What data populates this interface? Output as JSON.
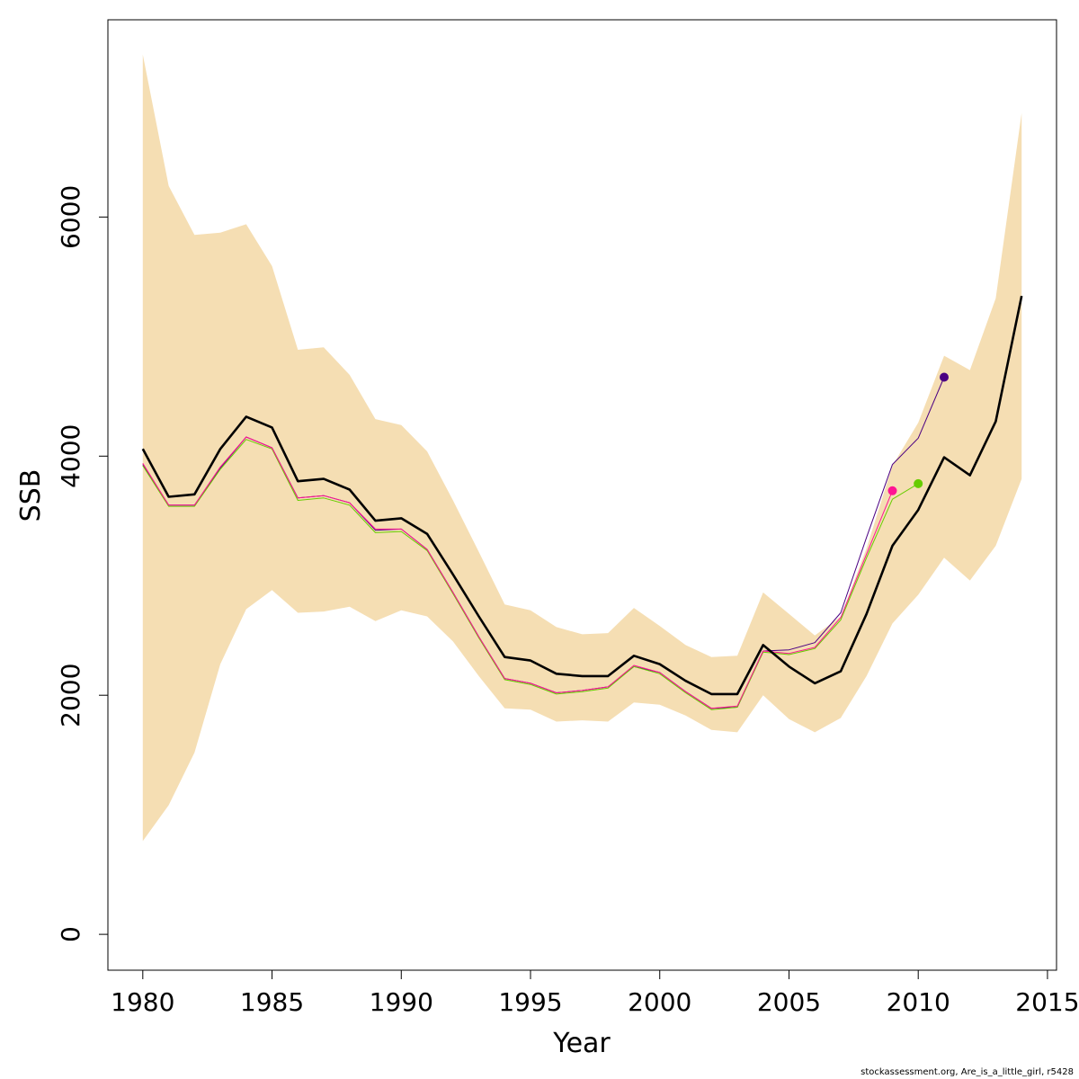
{
  "chart_data": {
    "type": "line",
    "title": "",
    "xlabel": "Year",
    "ylabel": "SSB",
    "xlim": [
      1978.65,
      2015.35
    ],
    "ylim": [
      -300,
      7650
    ],
    "x_ticks": [
      1980,
      1985,
      1990,
      1995,
      2000,
      2005,
      2010,
      2015
    ],
    "y_ticks": [
      0,
      2000,
      4000,
      6000
    ],
    "grid": false,
    "legend": "none",
    "confidence_band": {
      "color": "#f5deb3",
      "x": [
        1980,
        1981,
        1982,
        1983,
        1984,
        1985,
        1986,
        1987,
        1988,
        1989,
        1990,
        1991,
        1992,
        1993,
        1994,
        1995,
        1996,
        1997,
        1998,
        1999,
        2000,
        2001,
        2002,
        2003,
        2004,
        2005,
        2006,
        2007,
        2008,
        2009,
        2010,
        2011,
        2012,
        2013,
        2014
      ],
      "upper": [
        7360,
        6260,
        5850,
        5870,
        5940,
        5590,
        4890,
        4910,
        4680,
        4310,
        4260,
        4040,
        3630,
        3200,
        2760,
        2710,
        2570,
        2510,
        2520,
        2730,
        2580,
        2420,
        2320,
        2330,
        2860,
        2680,
        2500,
        2660,
        3230,
        3920,
        4280,
        4840,
        4720,
        5320,
        6870
      ],
      "lower": [
        780,
        1080,
        1520,
        2260,
        2720,
        2880,
        2690,
        2700,
        2740,
        2620,
        2710,
        2660,
        2450,
        2160,
        1890,
        1880,
        1780,
        1790,
        1780,
        1940,
        1920,
        1830,
        1710,
        1690,
        2000,
        1800,
        1690,
        1810,
        2160,
        2600,
        2840,
        3150,
        2960,
        3250,
        3810
      ]
    },
    "series": [
      {
        "color": "#000000",
        "x": [
          1980,
          1981,
          1982,
          1983,
          1984,
          1985,
          1986,
          1987,
          1988,
          1989,
          1990,
          1991,
          1992,
          1993,
          1994,
          1995,
          1996,
          1997,
          1998,
          1999,
          2000,
          2001,
          2002,
          2003,
          2004,
          2005,
          2006,
          2007,
          2008,
          2009,
          2010,
          2011,
          2012,
          2013,
          2014
        ],
        "values": [
          4060,
          3660,
          3680,
          4060,
          4330,
          4240,
          3790,
          3810,
          3720,
          3460,
          3480,
          3350,
          3010,
          2660,
          2320,
          2290,
          2180,
          2160,
          2160,
          2330,
          2260,
          2120,
          2010,
          2010,
          2420,
          2240,
          2100,
          2200,
          2680,
          3250,
          3550,
          3990,
          3840,
          4290,
          5340
        ],
        "end_point": false
      },
      {
        "color": "#4b0082",
        "x": [
          1980,
          1981,
          1982,
          1983,
          1984,
          1985,
          1986,
          1987,
          1988,
          1989,
          1990,
          1991,
          1992,
          1993,
          1994,
          1995,
          1996,
          1997,
          1998,
          1999,
          2000,
          2001,
          2002,
          2003,
          2004,
          2005,
          2006,
          2007,
          2008,
          2009,
          2010,
          2011
        ],
        "values": [
          3930,
          3590,
          3590,
          3900,
          4160,
          4070,
          3650,
          3670,
          3610,
          3380,
          3390,
          3220,
          2860,
          2490,
          2140,
          2100,
          2020,
          2040,
          2070,
          2240,
          2190,
          2030,
          1890,
          1900,
          2370,
          2380,
          2440,
          2690,
          3320,
          3930,
          4150,
          4660
        ],
        "end_point": true
      },
      {
        "color": "#66cc00",
        "x": [
          1980,
          1981,
          1982,
          1983,
          1984,
          1985,
          1986,
          1987,
          1988,
          1989,
          1990,
          1991,
          1992,
          1993,
          1994,
          1995,
          1996,
          1997,
          1998,
          1999,
          2000,
          2001,
          2002,
          2003,
          2004,
          2005,
          2006,
          2007,
          2008,
          2009,
          2010
        ],
        "values": [
          3920,
          3580,
          3580,
          3890,
          4140,
          4060,
          3630,
          3650,
          3590,
          3360,
          3370,
          3210,
          2850,
          2480,
          2130,
          2090,
          2010,
          2030,
          2060,
          2240,
          2180,
          2020,
          1880,
          1900,
          2360,
          2340,
          2390,
          2630,
          3150,
          3640,
          3770
        ],
        "end_point": true
      },
      {
        "color": "#ff1493",
        "x": [
          1980,
          1981,
          1982,
          1983,
          1984,
          1985,
          1986,
          1987,
          1988,
          1989,
          1990,
          1991,
          1992,
          1993,
          1994,
          1995,
          1996,
          1997,
          1998,
          1999,
          2000,
          2001,
          2002,
          2003,
          2004,
          2005,
          2006,
          2007,
          2008,
          2009
        ],
        "values": [
          3940,
          3590,
          3590,
          3910,
          4160,
          4070,
          3650,
          3670,
          3610,
          3390,
          3390,
          3220,
          2860,
          2490,
          2140,
          2100,
          2020,
          2040,
          2070,
          2250,
          2190,
          2030,
          1890,
          1910,
          2370,
          2350,
          2400,
          2650,
          3180,
          3710
        ],
        "end_point": true
      }
    ]
  },
  "footer": "stockassessment.org, Are_is_a_little_girl, r5428"
}
